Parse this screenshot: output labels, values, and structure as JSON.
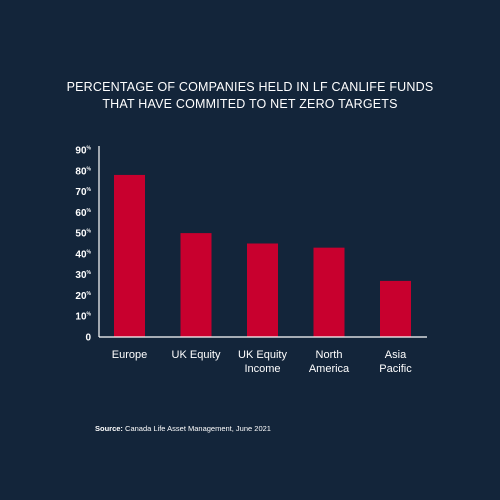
{
  "chart_data": {
    "type": "bar",
    "title_lines": [
      "PERCENTAGE OF COMPANIES HELD IN LF CANLIFE FUNDS",
      "THAT HAVE COMMITED TO NET ZERO TARGETS"
    ],
    "categories": [
      [
        "Europe"
      ],
      [
        "UK Equity"
      ],
      [
        "UK Equity",
        "Income"
      ],
      [
        "North",
        "America"
      ],
      [
        "Asia",
        "Pacific"
      ]
    ],
    "values": [
      78,
      50,
      45,
      43,
      27
    ],
    "ylim": [
      0,
      90
    ],
    "yticks": [
      0,
      10,
      20,
      30,
      40,
      50,
      60,
      70,
      80,
      90
    ],
    "ytick_unit": "%",
    "grid": false
  },
  "colors": {
    "background": "#13253a",
    "bar": "#c8002e",
    "axis": "#ffffff",
    "text": "#ffffff"
  },
  "source": {
    "label": "Source:",
    "text": " Canada Life Asset Management, June 2021"
  }
}
